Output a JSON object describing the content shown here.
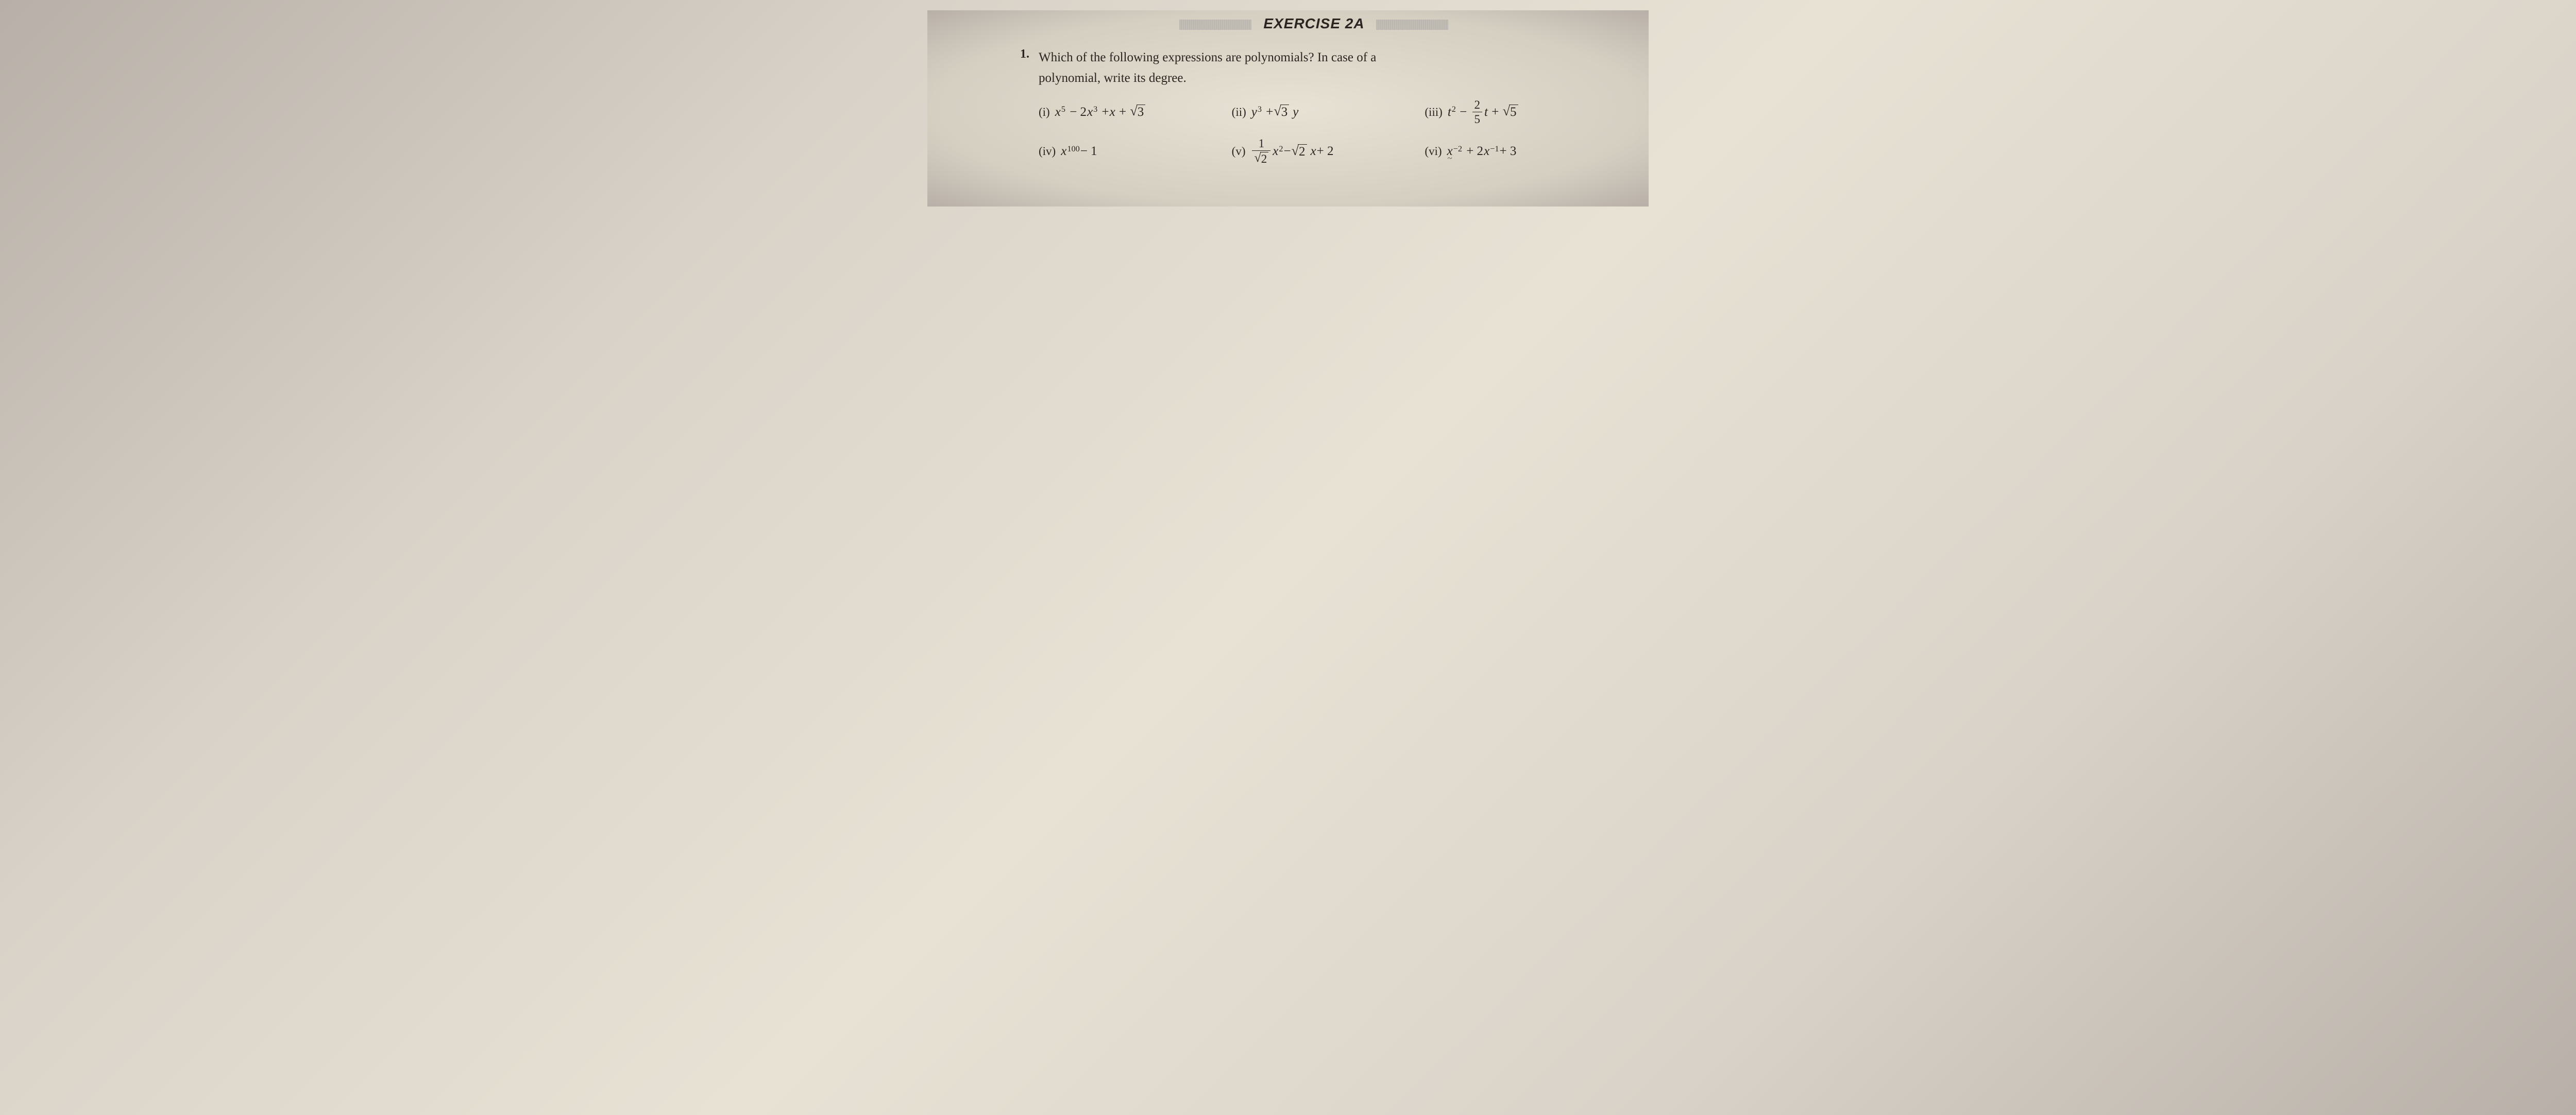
{
  "exercise_header": "EXERCISE 2A",
  "question": {
    "number": "1.",
    "text_line1": "Which of the following expressions are polynomials? In case of a",
    "text_line2": "polynomial, write its degree."
  },
  "options": [
    {
      "label": "(i)",
      "expr": {
        "type": "sum",
        "terms": [
          {
            "var": "x",
            "exp": 5
          },
          {
            "coef": "− 2",
            "var": "x",
            "exp": 3
          },
          {
            "coef": "+ ",
            "var": "x"
          },
          {
            "plus_sqrt": 3
          }
        ]
      }
    },
    {
      "label": "(ii)",
      "expr": {
        "type": "sum",
        "terms": [
          {
            "var": "y",
            "exp": 3
          },
          {
            "coef": "+ ",
            "sqrt": 3,
            "var": "y"
          }
        ]
      }
    },
    {
      "label": "(iii)",
      "expr": {
        "type": "sum",
        "terms": [
          {
            "var": "t",
            "exp": 2
          },
          {
            "minus_frac": {
              "num": 2,
              "den": 5
            },
            "var": "t"
          },
          {
            "plus_sqrt": 5
          }
        ]
      }
    },
    {
      "label": "(iv)",
      "expr": {
        "type": "sum",
        "terms": [
          {
            "var": "x",
            "exp": 100
          },
          {
            "literal": " − 1"
          }
        ]
      }
    },
    {
      "label": "(v)",
      "expr": {
        "type": "sum",
        "terms": [
          {
            "frac": {
              "num": 1,
              "den_sqrt": 2
            },
            "var": "x",
            "exp": 2
          },
          {
            "coef": " − ",
            "sqrt": 2,
            "trailing_var": "x"
          },
          {
            "literal": " + 2"
          }
        ]
      }
    },
    {
      "label": "(vi)",
      "expr": {
        "type": "sum",
        "terms": [
          {
            "var": "x",
            "exp": "−2",
            "tilde": true
          },
          {
            "coef": "+ 2",
            "var": "x",
            "exp": "−1"
          },
          {
            "literal": " + 3"
          }
        ]
      }
    }
  ],
  "style": {
    "text_color": "#2a2520",
    "paper_bg": "#e8e2d5",
    "heading_fontsize_pt": 20,
    "body_fontsize_pt": 18
  }
}
